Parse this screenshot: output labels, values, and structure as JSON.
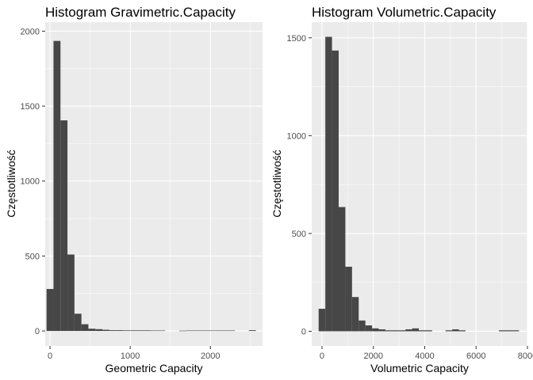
{
  "chart_data": [
    {
      "type": "bar",
      "title": "Histogram Gravimetric.Capacity",
      "xlabel": "Geometric Capacity",
      "ylabel": "Częstotliwość",
      "xlim": [
        -60,
        2650
      ],
      "ylim": [
        -100,
        2060
      ],
      "x_ticks": [
        0,
        1000,
        2000
      ],
      "x_tick_labels": [
        "0",
        "1000",
        "2000"
      ],
      "y_ticks": [
        0,
        500,
        1000,
        1500,
        2000
      ],
      "y_tick_labels": [
        "0",
        "500",
        "1000",
        "1500",
        "2000"
      ],
      "grid": true,
      "bin_width": 87,
      "bin_centers": [
        0,
        87,
        174,
        261,
        348,
        435,
        522,
        609,
        696,
        783,
        870,
        957,
        1044,
        1131,
        1218,
        1305,
        1392,
        1479,
        1566,
        1653,
        1740,
        1827,
        1914,
        2001,
        2088,
        2175,
        2262,
        2349,
        2436,
        2523
      ],
      "values": [
        280,
        1935,
        1405,
        510,
        115,
        45,
        15,
        12,
        8,
        5,
        5,
        4,
        4,
        4,
        4,
        3,
        3,
        0,
        0,
        2,
        3,
        3,
        3,
        3,
        3,
        3,
        3,
        0,
        0,
        5
      ]
    },
    {
      "type": "bar",
      "title": "Histogram Volumetric.Capacity",
      "xlabel": "Volumetric Capacity",
      "ylabel": "Częstotliwość",
      "xlim": [
        -400,
        8000
      ],
      "ylim": [
        -75,
        1580
      ],
      "x_ticks": [
        0,
        2000,
        4000,
        6000,
        8000
      ],
      "x_tick_labels": [
        "0",
        "2000",
        "4000",
        "6000",
        "8000"
      ],
      "y_ticks": [
        0,
        500,
        1000,
        1500
      ],
      "y_tick_labels": [
        "0",
        "500",
        "1000",
        "1500"
      ],
      "grid": true,
      "bin_width": 260,
      "bin_centers": [
        0,
        260,
        520,
        780,
        1040,
        1300,
        1560,
        1820,
        2080,
        2340,
        2600,
        2860,
        3120,
        3380,
        3640,
        3900,
        4160,
        4420,
        4680,
        4940,
        5200,
        5460,
        5720,
        5980,
        6240,
        6500,
        6760,
        7020,
        7280,
        7540
      ],
      "values": [
        115,
        1505,
        1435,
        635,
        330,
        175,
        55,
        30,
        15,
        10,
        5,
        5,
        5,
        10,
        15,
        5,
        5,
        0,
        0,
        5,
        10,
        5,
        0,
        0,
        0,
        0,
        0,
        5,
        5,
        5
      ]
    }
  ]
}
